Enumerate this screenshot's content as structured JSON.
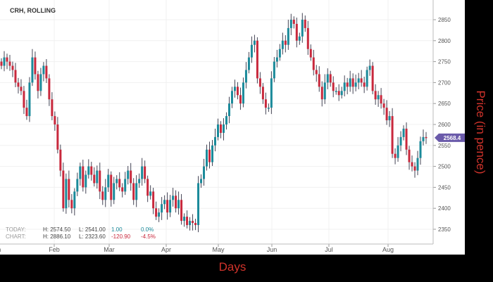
{
  "title": "CRH, ROLLING",
  "stats": {
    "today": {
      "label": "TODAY:",
      "high": "H: 2574.50",
      "low": "L: 2541.00",
      "change": "1.00",
      "pct": "0.0%"
    },
    "chart": {
      "label": "CHART:",
      "high": "H: 2886.10",
      "low": "L: 2323.60",
      "change": "-120.90",
      "pct": "-4.5%"
    }
  },
  "colors": {
    "up": "#1a8a9a",
    "down": "#c8283c",
    "last_price_tag": "#6a5aaa",
    "axis_title": "#d0332b"
  },
  "chart_data": {
    "type": "candlestick",
    "title": "CRH, ROLLING",
    "xlabel": "Days",
    "ylabel": "Price (in pence)",
    "ylim": [
      2320,
      2897
    ],
    "yticks": [
      2350,
      2400,
      2450,
      2500,
      2550,
      2600,
      2650,
      2700,
      2750,
      2800,
      2850
    ],
    "xticks": [
      "Jan",
      "Feb",
      "Mar",
      "Apr",
      "May",
      "Jun",
      "Jul",
      "Aug"
    ],
    "grid": true,
    "last_price": "2568.4",
    "closes": [
      2740,
      2760,
      2750,
      2740,
      2730,
      2700,
      2690,
      2680,
      2640,
      2620,
      2700,
      2760,
      2720,
      2680,
      2720,
      2740,
      2710,
      2660,
      2620,
      2600,
      2540,
      2490,
      2400,
      2470,
      2420,
      2400,
      2440,
      2470,
      2500,
      2450,
      2480,
      2500,
      2480,
      2460,
      2490,
      2440,
      2420,
      2450,
      2480,
      2420,
      2460,
      2470,
      2450,
      2440,
      2470,
      2490,
      2460,
      2420,
      2460,
      2470,
      2500,
      2470,
      2430,
      2440,
      2400,
      2380,
      2390,
      2410,
      2420,
      2390,
      2420,
      2430,
      2400,
      2420,
      2370,
      2380,
      2360,
      2370,
      2365,
      2360,
      2460,
      2470,
      2500,
      2540,
      2510,
      2550,
      2570,
      2600,
      2580,
      2600,
      2620,
      2650,
      2680,
      2690,
      2670,
      2650,
      2700,
      2730,
      2760,
      2790,
      2800,
      2710,
      2690,
      2660,
      2640,
      2640,
      2710,
      2750,
      2760,
      2780,
      2800,
      2790,
      2830,
      2850,
      2840,
      2800,
      2810,
      2850,
      2830,
      2780,
      2760,
      2730,
      2720,
      2690,
      2660,
      2700,
      2720,
      2700,
      2680,
      2680,
      2670,
      2680,
      2700,
      2690,
      2710,
      2690,
      2700,
      2710,
      2700,
      2690,
      2730,
      2740,
      2680,
      2660,
      2670,
      2650,
      2640,
      2610,
      2620,
      2530,
      2520,
      2550,
      2570,
      2590,
      2540,
      2510,
      2500,
      2490,
      2520,
      2560,
      2570,
      2568.4
    ]
  }
}
